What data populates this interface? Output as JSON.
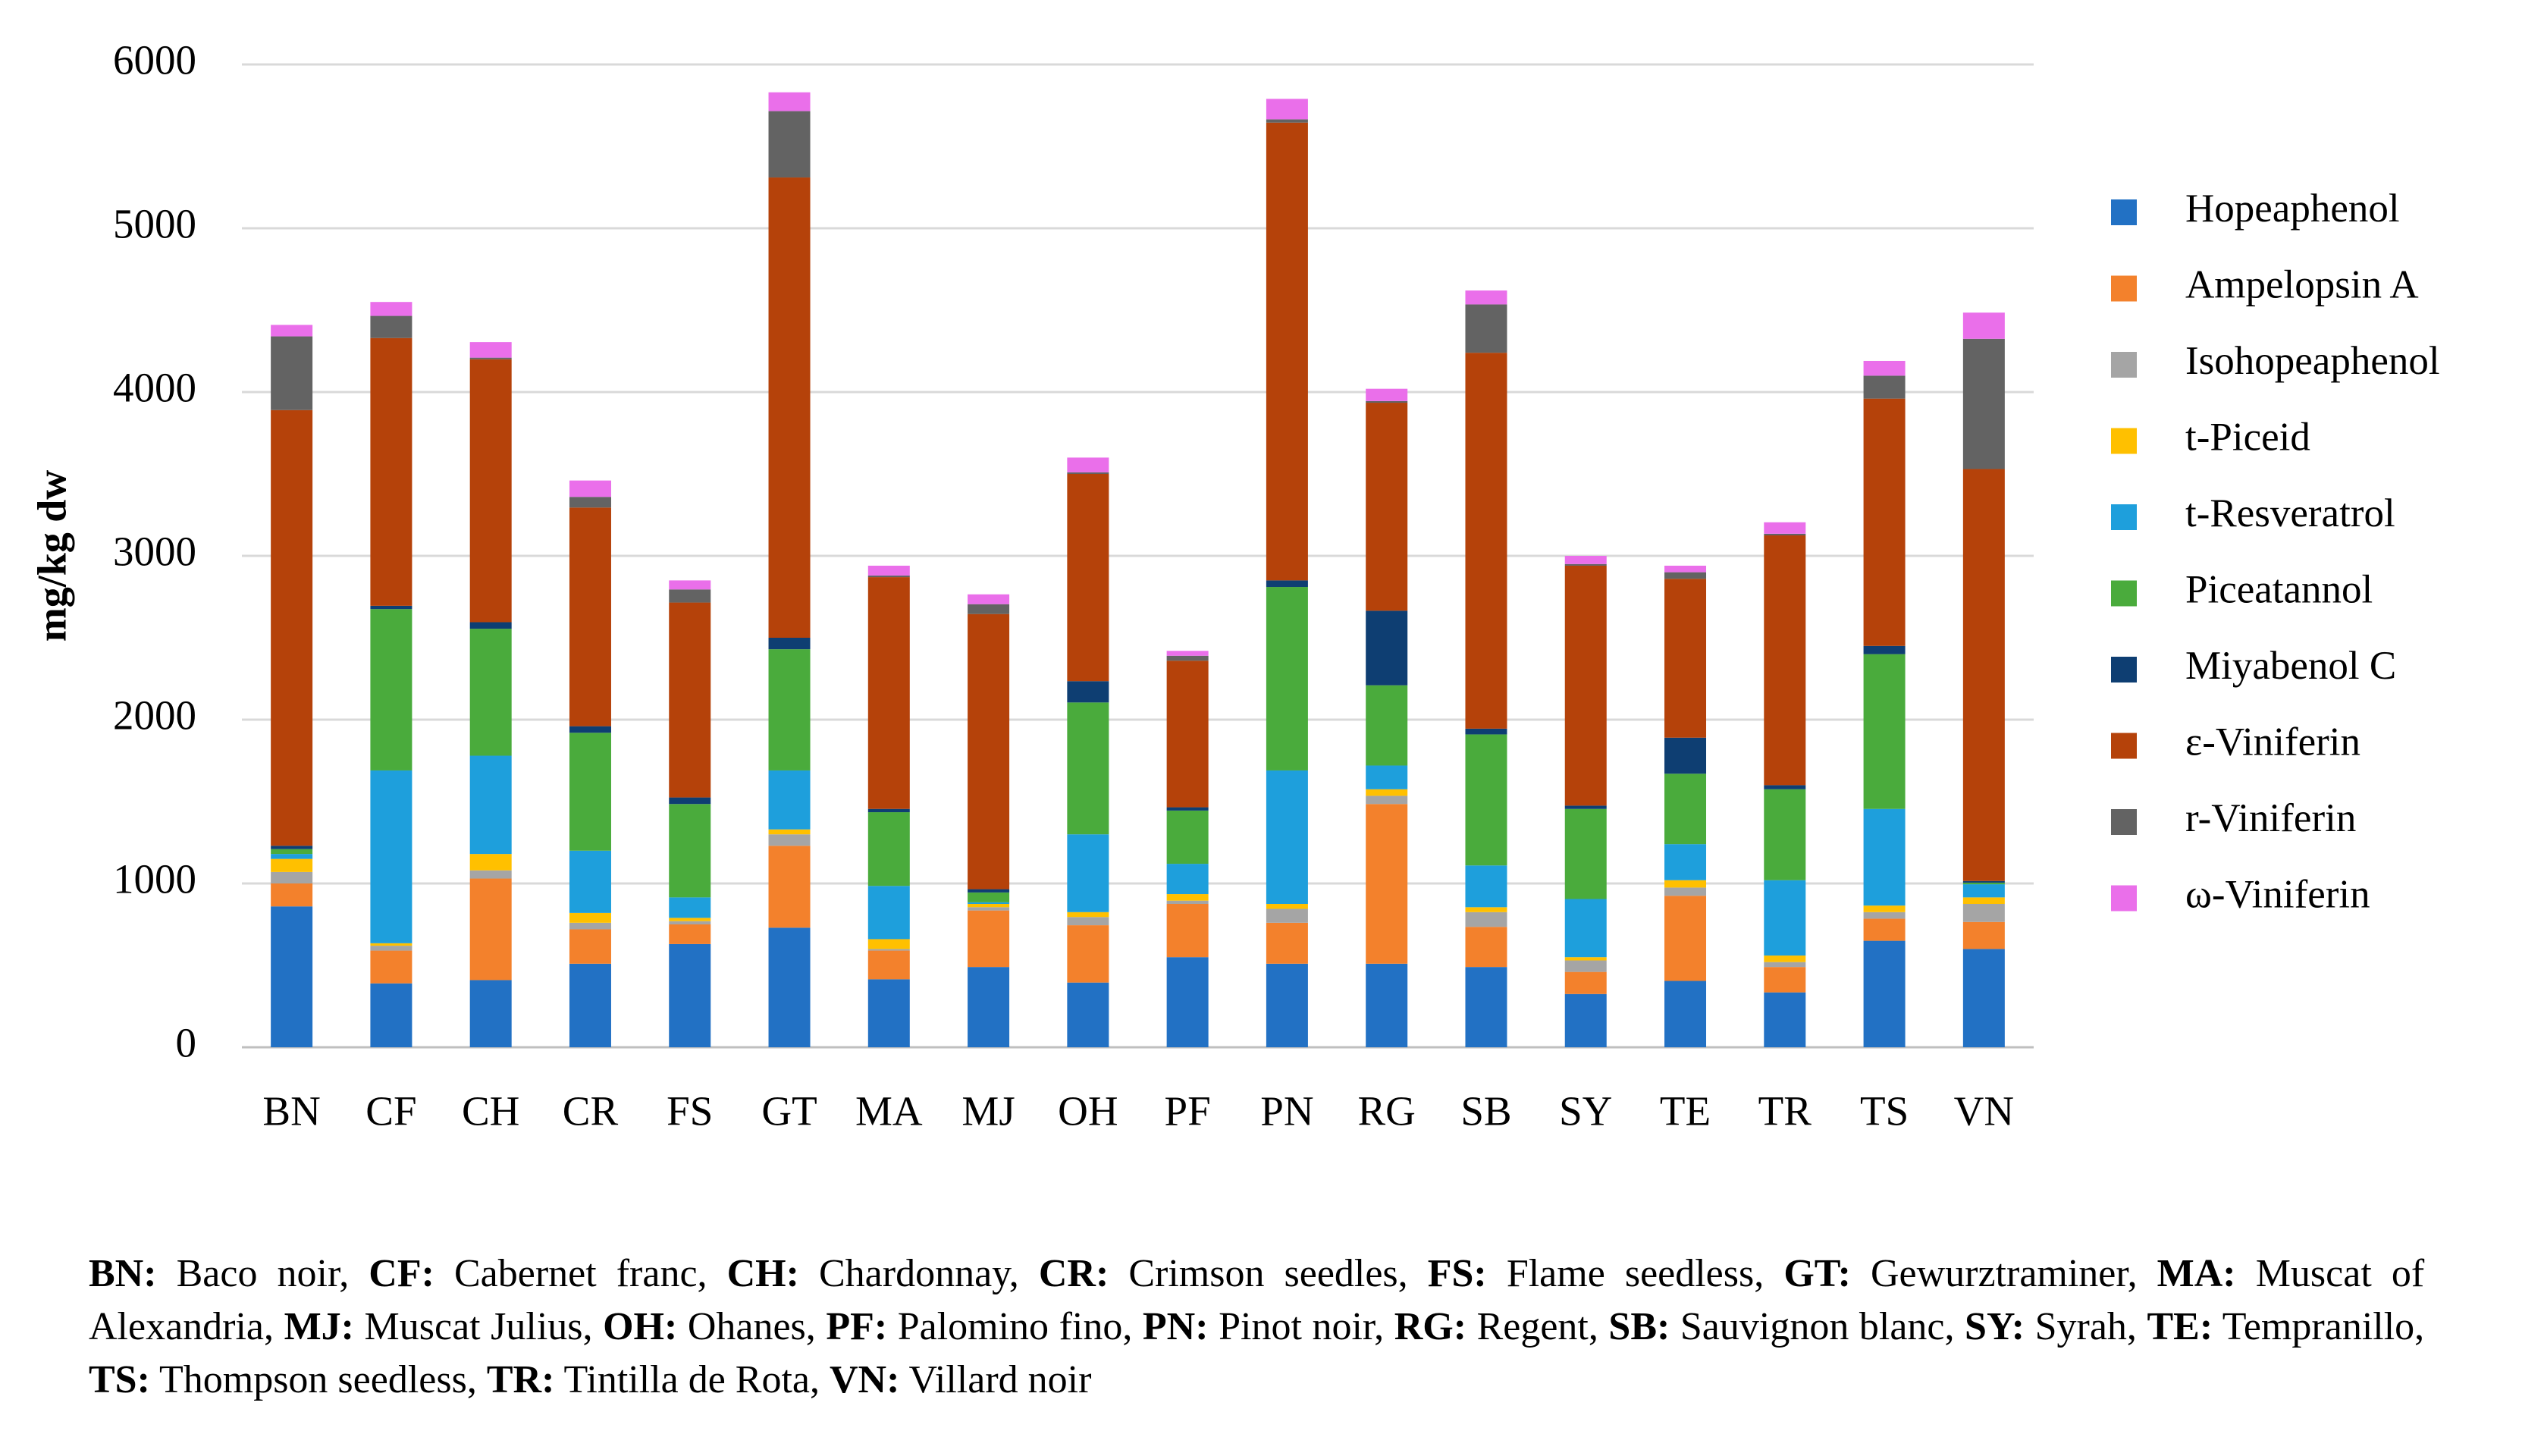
{
  "chart_data": {
    "type": "stacked-bar",
    "y_label": "mg/kg dw",
    "categories": [
      "BN",
      "CF",
      "CH",
      "CR",
      "FS",
      "GT",
      "MA",
      "MJ",
      "OH",
      "PF",
      "PN",
      "RG",
      "SB",
      "SY",
      "TE",
      "TR",
      "TS",
      "VN"
    ],
    "ylim": [
      0,
      6000
    ],
    "yticks": [
      0,
      1000,
      2000,
      3000,
      4000,
      5000,
      6000
    ],
    "grid": true,
    "series": [
      {
        "name": "Hopeaphenol",
        "color": "#2271c4",
        "values": [
          860,
          390,
          410,
          510,
          630,
          730,
          415,
          490,
          395,
          550,
          510,
          510,
          490,
          325,
          405,
          335,
          650,
          600
        ]
      },
      {
        "name": "Ampelopsin A",
        "color": "#f3812c",
        "values": [
          140,
          200,
          620,
          210,
          120,
          500,
          175,
          345,
          350,
          325,
          250,
          975,
          245,
          135,
          520,
          155,
          135,
          165
        ]
      },
      {
        "name": "Isohopeaphenol",
        "color": "#a5a5a5",
        "values": [
          70,
          30,
          50,
          40,
          20,
          70,
          10,
          20,
          50,
          20,
          85,
          50,
          90,
          70,
          50,
          30,
          40,
          110
        ]
      },
      {
        "name": "t-Piceid",
        "color": "#ffc000",
        "values": [
          80,
          15,
          100,
          60,
          20,
          30,
          60,
          20,
          30,
          40,
          30,
          40,
          30,
          20,
          45,
          40,
          40,
          40
        ]
      },
      {
        "name": "t-Resveratrol",
        "color": "#1e9fdc",
        "values": [
          30,
          1055,
          600,
          380,
          125,
          360,
          325,
          10,
          475,
          185,
          815,
          145,
          255,
          355,
          220,
          460,
          590,
          80
        ]
      },
      {
        "name": "Piceatannol",
        "color": "#4aab3c",
        "values": [
          30,
          985,
          775,
          720,
          570,
          740,
          450,
          60,
          805,
          325,
          1120,
          490,
          800,
          550,
          430,
          555,
          945,
          10
        ]
      },
      {
        "name": "Miyabenol C",
        "color": "#0e3e72",
        "values": [
          20,
          20,
          40,
          40,
          40,
          70,
          20,
          20,
          130,
          20,
          40,
          455,
          35,
          20,
          220,
          25,
          50,
          10
        ]
      },
      {
        "name": "ε-Viniferin",
        "color": "#b5420a",
        "values": [
          2660,
          1635,
          1605,
          1335,
          1190,
          2810,
          1415,
          1680,
          1265,
          895,
          2795,
          1270,
          2295,
          1465,
          970,
          1525,
          1510,
          2515
        ]
      },
      {
        "name": "r-Viniferin",
        "color": "#636363",
        "values": [
          450,
          135,
          10,
          65,
          80,
          405,
          10,
          60,
          10,
          30,
          20,
          10,
          295,
          10,
          40,
          10,
          140,
          795
        ]
      },
      {
        "name": "ω-Viniferin",
        "color": "#ea6fea",
        "values": [
          70,
          85,
          95,
          100,
          55,
          115,
          60,
          60,
          90,
          30,
          125,
          75,
          85,
          50,
          40,
          70,
          90,
          160
        ]
      }
    ]
  },
  "footnote": [
    {
      "code": "BN:",
      "name": "Baco noir,"
    },
    {
      "code": "CF:",
      "name": "Cabernet franc,"
    },
    {
      "code": "CH:",
      "name": "Chardonnay,"
    },
    {
      "code": "CR:",
      "name": "Crimson seedles,"
    },
    {
      "code": "FS:",
      "name": "Flame seedless,"
    },
    {
      "code": "GT:",
      "name": "Gewurztraminer,"
    },
    {
      "code": "MA:",
      "name": "Muscat of Alexandria,"
    },
    {
      "code": "MJ:",
      "name": "Muscat Julius,"
    },
    {
      "code": "OH:",
      "name": "Ohanes,"
    },
    {
      "code": "PF:",
      "name": "Palomino fino,"
    },
    {
      "code": "PN:",
      "name": "Pinot noir,"
    },
    {
      "code": "RG:",
      "name": "Regent,"
    },
    {
      "code": "SB:",
      "name": "Sauvignon blanc,"
    },
    {
      "code": "SY:",
      "name": "Syrah,"
    },
    {
      "code": "TE:",
      "name": "Tempranillo,"
    },
    {
      "code": "TS:",
      "name": "Thompson seedless,"
    },
    {
      "code": "TR:",
      "name": "Tintilla de Rota,"
    },
    {
      "code": "VN:",
      "name": "Villard noir"
    }
  ]
}
